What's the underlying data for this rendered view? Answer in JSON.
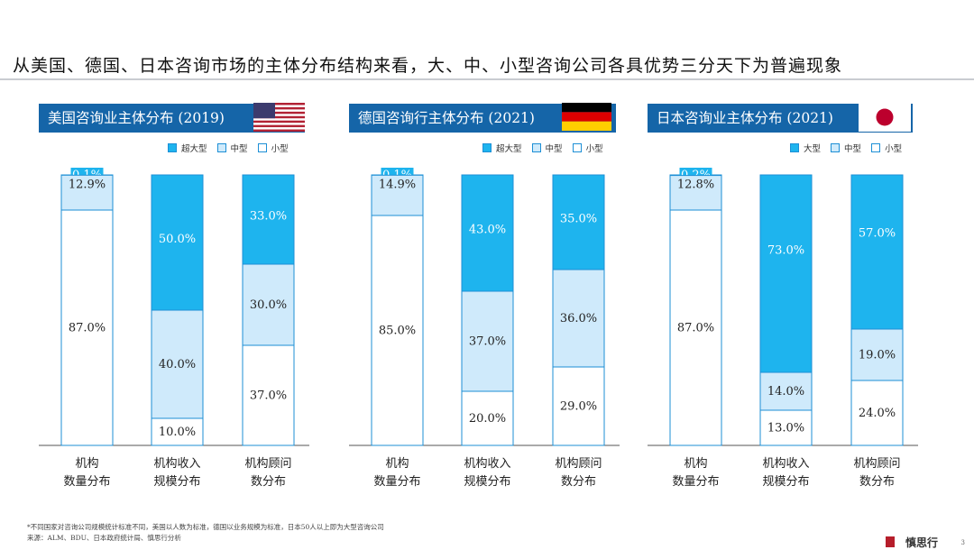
{
  "title": "从美国、德国、日本咨询市场的主体分布结构来看，大、中、小型咨询公司各具优势三分天下为普遍现象",
  "colors": {
    "large": "#1eb4ee",
    "medium": "#cfeafb",
    "small": "#ffffff",
    "header": "#1565a8",
    "border": "#1d8fd6"
  },
  "chart_data": [
    {
      "type": "bar",
      "title": "美国咨询业主体分布 (2019)",
      "flag_icon": "us-flag-icon",
      "legend": [
        "超大型",
        "中型",
        "小型"
      ],
      "categories": [
        [
          "机构",
          "数量分布"
        ],
        [
          "机构收入",
          "规模分布"
        ],
        [
          "机构顾问",
          "数分布"
        ]
      ],
      "series": [
        {
          "name": "超大型",
          "values": [
            0.1,
            50.0,
            33.0
          ],
          "labels": [
            "0.1%",
            "50.0%",
            "33.0%"
          ]
        },
        {
          "name": "中型",
          "values": [
            12.9,
            40.0,
            30.0
          ],
          "labels": [
            "12.9%",
            "40.0%",
            "30.0%"
          ]
        },
        {
          "name": "小型",
          "values": [
            87.0,
            10.0,
            37.0
          ],
          "labels": [
            "87.0%",
            "10.0%",
            "37.0%"
          ]
        }
      ],
      "ylim": [
        0,
        100
      ]
    },
    {
      "type": "bar",
      "title": "德国咨询行主体分布 (2021)",
      "flag_icon": "germany-flag-icon",
      "legend": [
        "超大型",
        "中型",
        "小型"
      ],
      "categories": [
        [
          "机构",
          "数量分布"
        ],
        [
          "机构收入",
          "规模分布"
        ],
        [
          "机构顾问",
          "数分布"
        ]
      ],
      "series": [
        {
          "name": "超大型",
          "values": [
            0.1,
            43.0,
            35.0
          ],
          "labels": [
            "0.1%",
            "43.0%",
            "35.0%"
          ]
        },
        {
          "name": "中型",
          "values": [
            14.9,
            37.0,
            36.0
          ],
          "labels": [
            "14.9%",
            "37.0%",
            "36.0%"
          ]
        },
        {
          "name": "小型",
          "values": [
            85.0,
            20.0,
            29.0
          ],
          "labels": [
            "85.0%",
            "20.0%",
            "29.0%"
          ]
        }
      ],
      "ylim": [
        0,
        100
      ]
    },
    {
      "type": "bar",
      "title": "日本咨询业主体分布 (2021)",
      "flag_icon": "japan-flag-icon",
      "legend": [
        "大型",
        "中型",
        "小型"
      ],
      "categories": [
        [
          "机构",
          "数量分布"
        ],
        [
          "机构收入",
          "规模分布"
        ],
        [
          "机构顾问",
          "数分布"
        ]
      ],
      "series": [
        {
          "name": "大型",
          "values": [
            0.2,
            73.0,
            57.0
          ],
          "labels": [
            "0.2%",
            "73.0%",
            "57.0%"
          ]
        },
        {
          "name": "中型",
          "values": [
            12.8,
            14.0,
            19.0
          ],
          "labels": [
            "12.8%",
            "14.0%",
            "19.0%"
          ]
        },
        {
          "name": "小型",
          "values": [
            87.0,
            13.0,
            24.0
          ],
          "labels": [
            "87.0%",
            "13.0%",
            "24.0%"
          ]
        }
      ],
      "ylim": [
        0,
        100
      ]
    }
  ],
  "footnote": "*不同国家对咨询公司规模统计标准不同，美国以人数为标准，德国以业务规模为标准，日本50人以上即为大型咨询公司",
  "source": "来源：ALM、BDU、日本政府统计局、慎思行分析",
  "brand": "慎思行",
  "page_number": "3"
}
